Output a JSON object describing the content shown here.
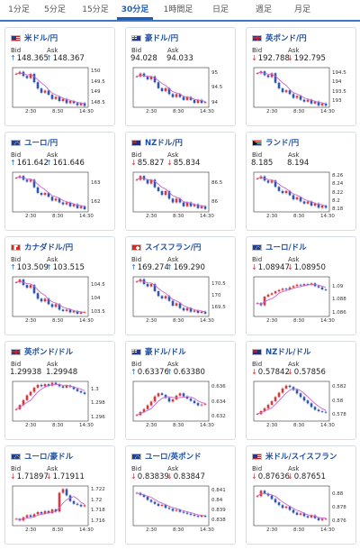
{
  "tabs": [
    {
      "label": "1分足",
      "active": false
    },
    {
      "label": "5分足",
      "active": false
    },
    {
      "label": "15分足",
      "active": false
    },
    {
      "label": "30分足",
      "active": true
    },
    {
      "label": "1時間足",
      "active": false
    },
    {
      "label": "日足",
      "active": false
    },
    {
      "label": "週足",
      "active": false
    },
    {
      "label": "月足",
      "active": false
    }
  ],
  "colors": {
    "accent": "#1f5fb5",
    "up_arrow": "#2a73d0",
    "down_arrow": "#d23a3a",
    "candle_up": "#d9383b",
    "candle_down": "#2f55b5",
    "ma_line": "#c964d0"
  },
  "cards": [
    {
      "title": "米ドル/円",
      "flag": "us",
      "bid_label": "Bid",
      "ask_label": "Ask",
      "bid": "148.365",
      "ask": "148.367",
      "direction": "up",
      "chart_data": {
        "type": "candlestick",
        "y_ticks": [
          "150",
          "149.5",
          "149",
          "148.5"
        ],
        "y_range": [
          148.3,
          150.2
        ],
        "x_ticks": [
          "2:30",
          "8:30",
          "14:30"
        ],
        "series": [
          149.9,
          150.0,
          149.8,
          149.7,
          149.9,
          149.5,
          149.2,
          149.0,
          149.1,
          148.9,
          148.7,
          148.8,
          148.6,
          148.7,
          148.5,
          148.6,
          148.5,
          148.4,
          148.5,
          148.37
        ]
      }
    },
    {
      "title": "豪ドル/円",
      "flag": "au",
      "bid_label": "Bid",
      "ask_label": "Ask",
      "bid": "94.028",
      "ask": "94.033",
      "direction": "none",
      "chart_data": {
        "type": "candlestick",
        "y_ticks": [
          "95",
          "94.5",
          "94"
        ],
        "y_range": [
          93.85,
          95.2
        ],
        "x_ticks": [
          "2:30",
          "8:30",
          "14:30"
        ],
        "series": [
          94.9,
          95.0,
          94.9,
          94.8,
          94.9,
          94.7,
          94.5,
          94.4,
          94.5,
          94.3,
          94.2,
          94.3,
          94.2,
          94.1,
          94.2,
          94.1,
          94.0,
          94.1,
          94.0,
          94.03
        ]
      }
    },
    {
      "title": "英ポンド/円",
      "flag": "gb",
      "bid_label": "Bid",
      "ask_label": "Ask",
      "bid": "192.788",
      "ask": "192.795",
      "direction": "down",
      "chart_data": {
        "type": "candlestick",
        "y_ticks": [
          "194.5",
          "194",
          "193.5",
          "193"
        ],
        "y_range": [
          192.7,
          194.8
        ],
        "x_ticks": [
          "2:30",
          "8:30",
          "14:30"
        ],
        "series": [
          194.5,
          194.6,
          194.4,
          194.3,
          194.5,
          194.0,
          193.7,
          193.5,
          193.6,
          193.4,
          193.2,
          193.3,
          193.1,
          193.0,
          193.1,
          192.9,
          193.0,
          192.8,
          192.9,
          192.79
        ]
      }
    },
    {
      "title": "ユーロ/円",
      "flag": "eu",
      "bid_label": "Bid",
      "ask_label": "Ask",
      "bid": "161.642",
      "ask": "161.646",
      "direction": "up",
      "chart_data": {
        "type": "candlestick",
        "y_ticks": [
          "163",
          "162"
        ],
        "y_range": [
          161.5,
          163.6
        ],
        "x_ticks": [
          "2:30",
          "8:30",
          "14:30"
        ],
        "series": [
          163.3,
          163.4,
          163.2,
          163.1,
          163.2,
          162.8,
          162.5,
          162.4,
          162.5,
          162.3,
          162.1,
          162.2,
          162.0,
          161.9,
          162.0,
          161.8,
          161.9,
          161.7,
          161.8,
          161.64
        ]
      }
    },
    {
      "title": "NZドル/円",
      "flag": "nz",
      "bid_label": "Bid",
      "ask_label": "Ask",
      "bid": "85.827",
      "ask": "85.834",
      "direction": "down",
      "chart_data": {
        "type": "candlestick",
        "y_ticks": [
          "86.5",
          "86"
        ],
        "y_range": [
          85.75,
          86.8
        ],
        "x_ticks": [
          "2:30",
          "8:30",
          "14:30"
        ],
        "series": [
          86.6,
          86.7,
          86.6,
          86.5,
          86.6,
          86.4,
          86.3,
          86.2,
          86.3,
          86.1,
          86.0,
          86.1,
          86.0,
          85.9,
          86.0,
          85.9,
          85.95,
          85.85,
          85.9,
          85.83
        ]
      }
    },
    {
      "title": "ランド/円",
      "flag": "za",
      "bid_label": "Bid",
      "ask_label": "Ask",
      "bid": "8.185",
      "ask": "8.194",
      "direction": "none",
      "chart_data": {
        "type": "candlestick",
        "y_ticks": [
          "8.26",
          "8.24",
          "8.22",
          "8.2",
          "8.18"
        ],
        "y_range": [
          8.175,
          8.27
        ],
        "x_ticks": [
          "2:30",
          "8:30",
          "14:30"
        ],
        "series": [
          8.255,
          8.26,
          8.25,
          8.245,
          8.25,
          8.235,
          8.225,
          8.22,
          8.225,
          8.215,
          8.205,
          8.21,
          8.2,
          8.195,
          8.2,
          8.19,
          8.195,
          8.185,
          8.19,
          8.185
        ]
      }
    },
    {
      "title": "カナダドル/円",
      "flag": "ca",
      "bid_label": "Bid",
      "ask_label": "Ask",
      "bid": "103.509",
      "ask": "103.515",
      "direction": "up",
      "chart_data": {
        "type": "candlestick",
        "y_ticks": [
          "104.5",
          "104",
          "103.5"
        ],
        "y_range": [
          103.35,
          104.8
        ],
        "x_ticks": [
          "2:30",
          "8:30",
          "14:30"
        ],
        "series": [
          104.6,
          104.7,
          104.5,
          104.4,
          104.5,
          104.2,
          104.0,
          103.9,
          104.0,
          103.8,
          103.7,
          103.8,
          103.6,
          103.55,
          103.6,
          103.5,
          103.55,
          103.45,
          103.5,
          103.51
        ]
      }
    },
    {
      "title": "スイスフラン/円",
      "flag": "ch",
      "bid_label": "Bid",
      "ask_label": "Ask",
      "bid": "169.274",
      "ask": "169.290",
      "direction": "up",
      "chart_data": {
        "type": "candlestick",
        "y_ticks": [
          "170.5",
          "170",
          "169.5"
        ],
        "y_range": [
          169.15,
          170.8
        ],
        "x_ticks": [
          "2:30",
          "8:30",
          "14:30"
        ],
        "series": [
          170.6,
          170.7,
          170.5,
          170.4,
          170.5,
          170.2,
          170.0,
          169.9,
          170.0,
          169.8,
          169.6,
          169.7,
          169.5,
          169.4,
          169.5,
          169.35,
          169.4,
          169.3,
          169.35,
          169.27
        ]
      }
    },
    {
      "title": "ユーロ/ドル",
      "flag": "eu",
      "bid_label": "Bid",
      "ask_label": "Ask",
      "bid": "1.08947",
      "ask": "1.08950",
      "direction": "down",
      "chart_data": {
        "type": "candlestick",
        "y_ticks": [
          "1.09",
          "1.088",
          "1.086"
        ],
        "y_range": [
          1.0855,
          1.0915
        ],
        "x_ticks": [
          "2:30",
          "8:30",
          "14:30"
        ],
        "series": [
          1.0875,
          1.0872,
          1.0885,
          1.0888,
          1.089,
          1.0893,
          1.0895,
          1.0897,
          1.0896,
          1.0899,
          1.0901,
          1.0903,
          1.0902,
          1.0904,
          1.0903,
          1.0905,
          1.0901,
          1.0899,
          1.0896,
          1.0895
        ]
      }
    },
    {
      "title": "英ポンド/ドル",
      "flag": "gb",
      "bid_label": "Bid",
      "ask_label": "Ask",
      "bid": "1.29938",
      "ask": "1.29948",
      "direction": "none",
      "chart_data": {
        "type": "candlestick",
        "y_ticks": [
          "1.3",
          "1.298",
          "1.296"
        ],
        "y_range": [
          1.2955,
          1.3012
        ],
        "x_ticks": [
          "2:30",
          "8:30",
          "14:30"
        ],
        "series": [
          1.2972,
          1.2978,
          1.2985,
          1.2992,
          1.2997,
          1.3003,
          1.3007,
          1.3005,
          1.3008,
          1.3006,
          1.301,
          1.3008,
          1.3005,
          1.3003,
          1.3006,
          1.3004,
          1.3001,
          1.2998,
          1.2996,
          1.2994
        ]
      }
    },
    {
      "title": "豪ドル/ドル",
      "flag": "au",
      "bid_label": "Bid",
      "ask_label": "Ask",
      "bid": "0.63376",
      "ask": "0.63380",
      "direction": "up",
      "chart_data": {
        "type": "candlestick",
        "y_ticks": [
          "0.636",
          "0.634",
          "0.632"
        ],
        "y_range": [
          0.6315,
          0.6368
        ],
        "x_ticks": [
          "2:30",
          "8:30",
          "14:30"
        ],
        "series": [
          0.6323,
          0.6327,
          0.6331,
          0.6336,
          0.6341,
          0.6348,
          0.6352,
          0.635,
          0.6346,
          0.6341,
          0.6344,
          0.6349,
          0.6352,
          0.6348,
          0.6345,
          0.6342,
          0.6339,
          0.6336,
          0.6337,
          0.6338
        ]
      }
    },
    {
      "title": "NZドル/ドル",
      "flag": "nz",
      "bid_label": "Bid",
      "ask_label": "Ask",
      "bid": "0.57842",
      "ask": "0.57856",
      "direction": "down",
      "chart_data": {
        "type": "candlestick",
        "y_ticks": [
          "0.582",
          "0.58",
          "0.578"
        ],
        "y_range": [
          0.5772,
          0.5828
        ],
        "x_ticks": [
          "2:30",
          "8:30",
          "14:30"
        ],
        "series": [
          0.5782,
          0.5786,
          0.579,
          0.5795,
          0.58,
          0.5806,
          0.5812,
          0.5818,
          0.5822,
          0.582,
          0.5816,
          0.5811,
          0.5806,
          0.5801,
          0.5797,
          0.5792,
          0.5788,
          0.5786,
          0.5785,
          0.5784
        ]
      }
    },
    {
      "title": "ユーロ/豪ドル",
      "flag": "eu",
      "bid_label": "Bid",
      "ask_label": "Ask",
      "bid": "1.71897",
      "ask": "1.71911",
      "direction": "down",
      "chart_data": {
        "type": "candlestick",
        "y_ticks": [
          "1.722",
          "1.72",
          "1.718",
          "1.716"
        ],
        "y_range": [
          1.7152,
          1.7228
        ],
        "x_ticks": [
          "2:30",
          "8:30",
          "14:30"
        ],
        "series": [
          1.7165,
          1.7162,
          1.7168,
          1.7172,
          1.7169,
          1.7174,
          1.7178,
          1.7175,
          1.718,
          1.7176,
          1.7183,
          1.7179,
          1.7215,
          1.7222,
          1.721,
          1.7199,
          1.7194,
          1.7192,
          1.7189,
          1.7191
        ]
      }
    },
    {
      "title": "ユーロ/英ポンド",
      "flag": "eu",
      "bid_label": "Bid",
      "ask_label": "Ask",
      "bid": "0.83839",
      "ask": "0.83847",
      "direction": "down",
      "chart_data": {
        "type": "candlestick",
        "y_ticks": [
          "0.841",
          "0.84",
          "0.839",
          "0.838"
        ],
        "y_range": [
          0.8375,
          0.8415
        ],
        "x_ticks": [
          "2:30",
          "8:30",
          "14:30"
        ],
        "series": [
          0.8408,
          0.8406,
          0.8404,
          0.8401,
          0.8399,
          0.8397,
          0.8395,
          0.8396,
          0.8393,
          0.8392,
          0.839,
          0.8391,
          0.8389,
          0.8388,
          0.8387,
          0.8386,
          0.8385,
          0.8384,
          0.8385,
          0.8384
        ]
      }
    },
    {
      "title": "米ドル/スイスフラン",
      "flag": "us",
      "bid_label": "Bid",
      "ask_label": "Ask",
      "bid": "0.87636",
      "ask": "0.87651",
      "direction": "down",
      "chart_data": {
        "type": "candlestick",
        "y_ticks": [
          "0.88",
          "0.878",
          "0.876"
        ],
        "y_range": [
          0.8754,
          0.8812
        ],
        "x_ticks": [
          "2:30",
          "8:30",
          "14:30"
        ],
        "series": [
          0.8797,
          0.8805,
          0.8801,
          0.8798,
          0.8793,
          0.8788,
          0.8784,
          0.878,
          0.8782,
          0.8777,
          0.8773,
          0.877,
          0.8772,
          0.8768,
          0.8766,
          0.8769,
          0.8765,
          0.8762,
          0.8764,
          0.8764
        ]
      }
    }
  ]
}
